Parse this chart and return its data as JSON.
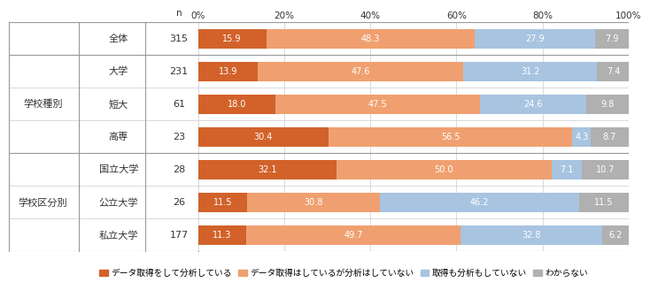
{
  "rows": [
    {
      "label": "全体",
      "group": "",
      "n": 315,
      "values": [
        15.9,
        48.3,
        27.9,
        7.9
      ]
    },
    {
      "label": "大学",
      "group": "学校種別",
      "n": 231,
      "values": [
        13.9,
        47.6,
        31.2,
        7.4
      ]
    },
    {
      "label": "短大",
      "group": "学校種別",
      "n": 61,
      "values": [
        18.0,
        47.5,
        24.6,
        9.8
      ]
    },
    {
      "label": "高専",
      "group": "学校種別",
      "n": 23,
      "values": [
        30.4,
        56.5,
        4.3,
        8.7
      ]
    },
    {
      "label": "国立大学",
      "group": "学校区分別",
      "n": 28,
      "values": [
        32.1,
        50.0,
        7.1,
        10.7
      ]
    },
    {
      "label": "公立大学",
      "group": "学校区分別",
      "n": 26,
      "values": [
        11.5,
        30.8,
        46.2,
        11.5
      ]
    },
    {
      "label": "私立大学",
      "group": "学校区分別",
      "n": 177,
      "values": [
        11.3,
        49.7,
        32.8,
        6.2
      ]
    }
  ],
  "colors": [
    "#d2622a",
    "#f0a070",
    "#a8c4e0",
    "#b0b0b0"
  ],
  "legend_labels": [
    "データ取得をして分析している",
    "データ取得はしているが分析はしていない",
    "取得も分析もしていない",
    "わからない"
  ],
  "bar_height": 0.6,
  "background_color": "#ffffff",
  "grid_color": "#cccccc",
  "sep_color": "#999999",
  "text_color": "#333333",
  "label_fontsize": 8.0,
  "tick_fontsize": 7.5,
  "legend_fontsize": 7.0,
  "value_fontsize": 7.0,
  "xticks": [
    0,
    20,
    40,
    60,
    80,
    100
  ],
  "xticklabels": [
    "0%",
    "20%",
    "40%",
    "60%",
    "80%",
    "100%"
  ],
  "group_labels": [
    {
      "text": "学校種別",
      "rows": [
        1,
        2,
        3
      ]
    },
    {
      "text": "学校区分別",
      "rows": [
        4,
        5,
        6
      ]
    }
  ],
  "separator_after": [
    0,
    3
  ],
  "row_separators": [
    1,
    2,
    4,
    5
  ]
}
